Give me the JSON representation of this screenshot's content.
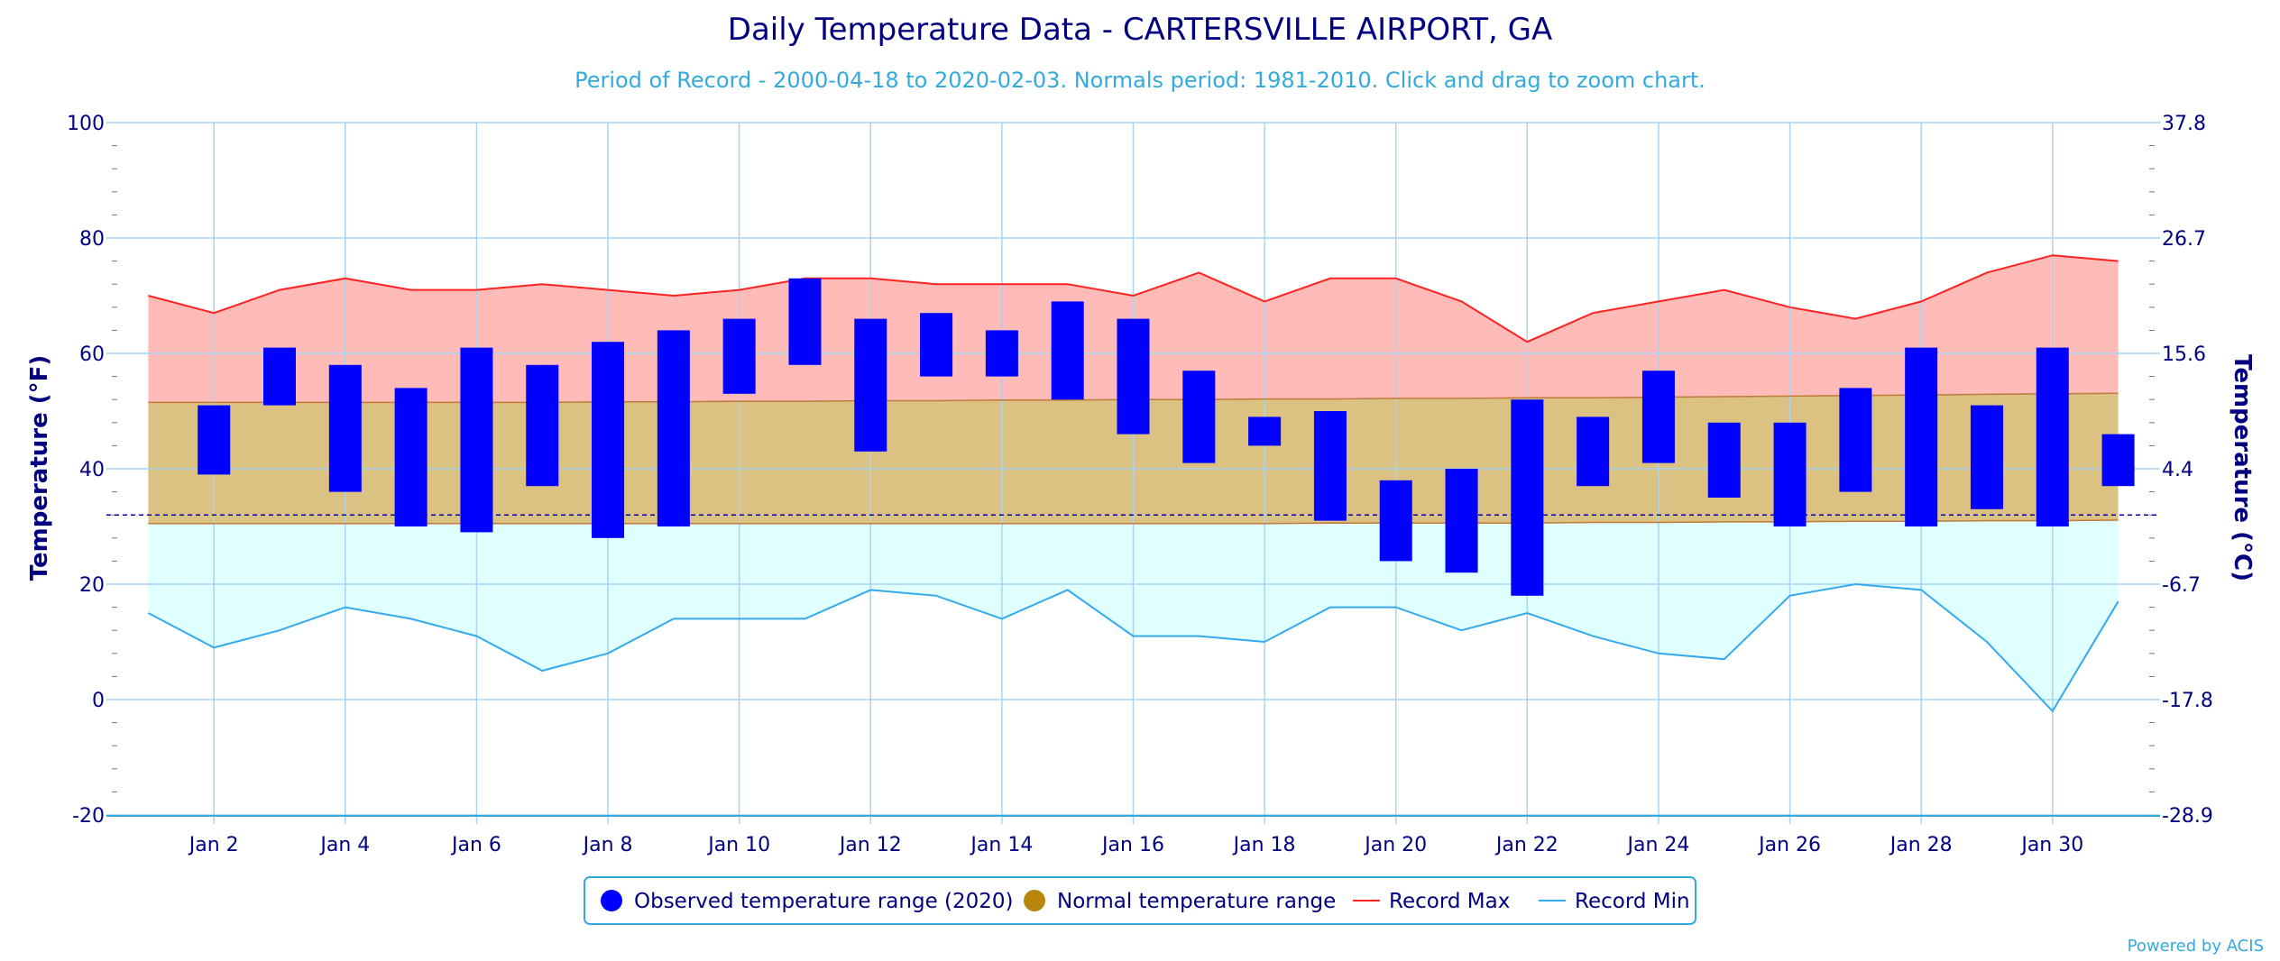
{
  "chart_data": {
    "type": "bar",
    "title": "Daily Temperature Data - CARTERSVILLE AIRPORT, GA",
    "subtitle": "Period of Record - 2000-04-18 to 2020-02-03. Normals period: 1981-2010. Click and drag to zoom chart.",
    "ylabel": "Temperature (°F)",
    "ylabel_right": "Temperature (°C)",
    "ylim": [
      -20,
      100
    ],
    "yticks": [
      "-20",
      "0",
      "20",
      "40",
      "60",
      "80",
      "100"
    ],
    "yticks_right": [
      "-28.9",
      "-17.8",
      "-6.7",
      "4.4",
      "15.6",
      "26.7",
      "37.8"
    ],
    "xlim": [
      0.5,
      31.5
    ],
    "xticks": [
      {
        "day": 2,
        "label": "Jan 2"
      },
      {
        "day": 4,
        "label": "Jan 4"
      },
      {
        "day": 6,
        "label": "Jan 6"
      },
      {
        "day": 8,
        "label": "Jan 8"
      },
      {
        "day": 10,
        "label": "Jan 10"
      },
      {
        "day": 12,
        "label": "Jan 12"
      },
      {
        "day": 14,
        "label": "Jan 14"
      },
      {
        "day": 16,
        "label": "Jan 16"
      },
      {
        "day": 18,
        "label": "Jan 18"
      },
      {
        "day": 20,
        "label": "Jan 20"
      },
      {
        "day": 22,
        "label": "Jan 22"
      },
      {
        "day": 24,
        "label": "Jan 24"
      },
      {
        "day": 26,
        "label": "Jan 26"
      },
      {
        "day": 28,
        "label": "Jan 28"
      },
      {
        "day": 30,
        "label": "Jan 30"
      }
    ],
    "freezing_line": 32,
    "grid": true,
    "legend_position": "bottom-center",
    "days": [
      1,
      2,
      3,
      4,
      5,
      6,
      7,
      8,
      9,
      10,
      11,
      12,
      13,
      14,
      15,
      16,
      17,
      18,
      19,
      20,
      21,
      22,
      23,
      24,
      25,
      26,
      27,
      28,
      29,
      30,
      31
    ],
    "series": [
      {
        "name": "Observed temperature range (2020)",
        "color": "#0000ff",
        "ranges": [
          {
            "day": 2,
            "low": 39,
            "high": 51
          },
          {
            "day": 3,
            "low": 51,
            "high": 61
          },
          {
            "day": 4,
            "low": 36,
            "high": 58
          },
          {
            "day": 5,
            "low": 30,
            "high": 54
          },
          {
            "day": 6,
            "low": 29,
            "high": 61
          },
          {
            "day": 7,
            "low": 37,
            "high": 58
          },
          {
            "day": 8,
            "low": 28,
            "high": 62
          },
          {
            "day": 9,
            "low": 30,
            "high": 64
          },
          {
            "day": 10,
            "low": 53,
            "high": 66
          },
          {
            "day": 11,
            "low": 58,
            "high": 73
          },
          {
            "day": 12,
            "low": 43,
            "high": 66
          },
          {
            "day": 13,
            "low": 56,
            "high": 67
          },
          {
            "day": 14,
            "low": 56,
            "high": 64
          },
          {
            "day": 15,
            "low": 52,
            "high": 69
          },
          {
            "day": 16,
            "low": 46,
            "high": 66
          },
          {
            "day": 17,
            "low": 41,
            "high": 57
          },
          {
            "day": 18,
            "low": 44,
            "high": 49
          },
          {
            "day": 19,
            "low": 31,
            "high": 50
          },
          {
            "day": 20,
            "low": 24,
            "high": 38
          },
          {
            "day": 21,
            "low": 22,
            "high": 40
          },
          {
            "day": 22,
            "low": 18,
            "high": 52
          },
          {
            "day": 23,
            "low": 37,
            "high": 49
          },
          {
            "day": 24,
            "low": 41,
            "high": 57
          },
          {
            "day": 25,
            "low": 35,
            "high": 48
          },
          {
            "day": 26,
            "low": 30,
            "high": 48
          },
          {
            "day": 27,
            "low": 36,
            "high": 54
          },
          {
            "day": 28,
            "low": 30,
            "high": 61
          },
          {
            "day": 29,
            "low": 33,
            "high": 51
          },
          {
            "day": 30,
            "low": 30,
            "high": 61
          },
          {
            "day": 31,
            "low": 37,
            "high": 46
          }
        ]
      },
      {
        "name": "Normal temperature range",
        "color": "#b8860b",
        "fill": "#dbc283",
        "high": [
          51.5,
          51.5,
          51.5,
          51.5,
          51.5,
          51.5,
          51.5,
          51.6,
          51.6,
          51.7,
          51.7,
          51.8,
          51.8,
          51.9,
          51.9,
          52,
          52,
          52.1,
          52.1,
          52.2,
          52.2,
          52.3,
          52.3,
          52.4,
          52.5,
          52.6,
          52.7,
          52.8,
          52.9,
          53,
          53.1
        ],
        "low": [
          30.5,
          30.5,
          30.5,
          30.5,
          30.5,
          30.5,
          30.5,
          30.5,
          30.5,
          30.5,
          30.5,
          30.5,
          30.5,
          30.5,
          30.5,
          30.5,
          30.5,
          30.5,
          30.6,
          30.6,
          30.6,
          30.6,
          30.7,
          30.7,
          30.8,
          30.8,
          30.9,
          30.9,
          31,
          31,
          31.1
        ]
      },
      {
        "name": "Record Max",
        "color": "#ff2222",
        "fill": "#ffbbb8",
        "values": [
          70,
          67,
          71,
          73,
          71,
          71,
          72,
          71,
          70,
          71,
          73,
          73,
          72,
          72,
          72,
          70,
          74,
          69,
          73,
          73,
          69,
          62,
          67,
          69,
          71,
          68,
          66,
          69,
          74,
          77,
          76
        ]
      },
      {
        "name": "Record Min",
        "color": "#33aaee",
        "fill": "#e0ffff",
        "values": [
          15,
          9,
          12,
          16,
          14,
          11,
          5,
          8,
          14,
          14,
          14,
          19,
          18,
          14,
          19,
          11,
          11,
          10,
          16,
          16,
          12,
          15,
          11,
          8,
          7,
          18,
          20,
          19,
          10,
          -2,
          17
        ]
      }
    ]
  },
  "credit": "Powered by ACIS"
}
